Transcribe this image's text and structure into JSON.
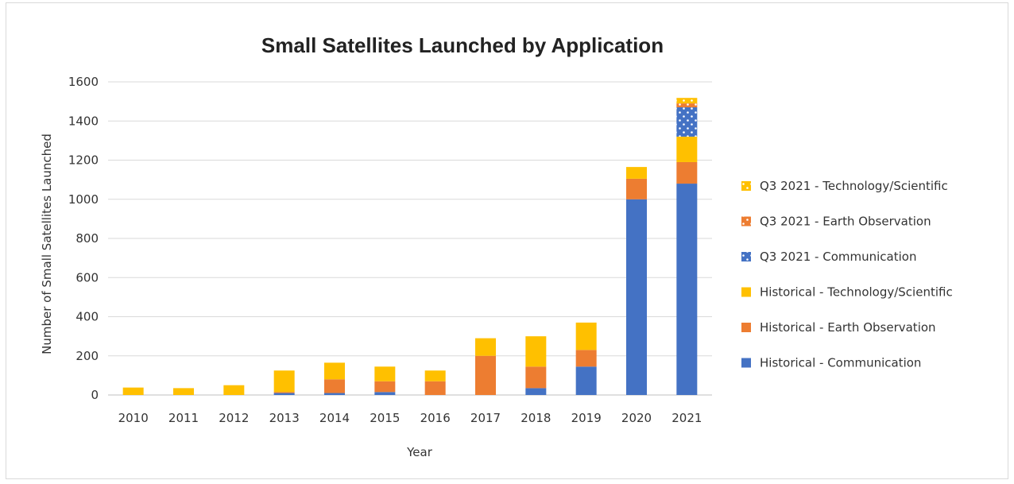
{
  "chart_data": {
    "type": "bar",
    "stacked": true,
    "title": "Small Satellites Launched by Application",
    "xlabel": "Year",
    "ylabel": "Number of Small Satellites Launched",
    "ylim": [
      0,
      1600
    ],
    "yticks": [
      0,
      200,
      400,
      600,
      800,
      1000,
      1200,
      1400,
      1600
    ],
    "grid": true,
    "legend_position": "right",
    "categories": [
      "2010",
      "2011",
      "2012",
      "2013",
      "2014",
      "2015",
      "2016",
      "2017",
      "2018",
      "2019",
      "2020",
      "2021"
    ],
    "series": [
      {
        "name": "Historical - Communication",
        "color": "#4472c4",
        "pattern": "solid",
        "values": [
          0,
          0,
          0,
          10,
          10,
          15,
          0,
          0,
          35,
          145,
          1000,
          1080
        ]
      },
      {
        "name": "Historical - Earth Observation",
        "color": "#ed7d31",
        "pattern": "solid",
        "values": [
          0,
          0,
          0,
          5,
          70,
          55,
          70,
          200,
          110,
          85,
          105,
          110
        ]
      },
      {
        "name": "Historical - Technology/Scientific",
        "color": "#ffc000",
        "pattern": "solid",
        "values": [
          38,
          35,
          50,
          110,
          85,
          75,
          55,
          90,
          155,
          140,
          60,
          130
        ]
      },
      {
        "name": "Q3 2021 - Communication",
        "color": "#4472c4",
        "pattern": "dotted",
        "values": [
          0,
          0,
          0,
          0,
          0,
          0,
          0,
          0,
          0,
          0,
          0,
          150
        ]
      },
      {
        "name": "Q3 2021 - Earth Observation",
        "color": "#ed7d31",
        "pattern": "dotted",
        "values": [
          0,
          0,
          0,
          0,
          0,
          0,
          0,
          0,
          0,
          0,
          0,
          20
        ]
      },
      {
        "name": "Q3 2021 - Technology/Scientific",
        "color": "#ffc000",
        "pattern": "dotted",
        "values": [
          0,
          0,
          0,
          0,
          0,
          0,
          0,
          0,
          0,
          0,
          0,
          28
        ]
      }
    ],
    "legend_order": [
      5,
      4,
      3,
      2,
      1,
      0
    ]
  }
}
